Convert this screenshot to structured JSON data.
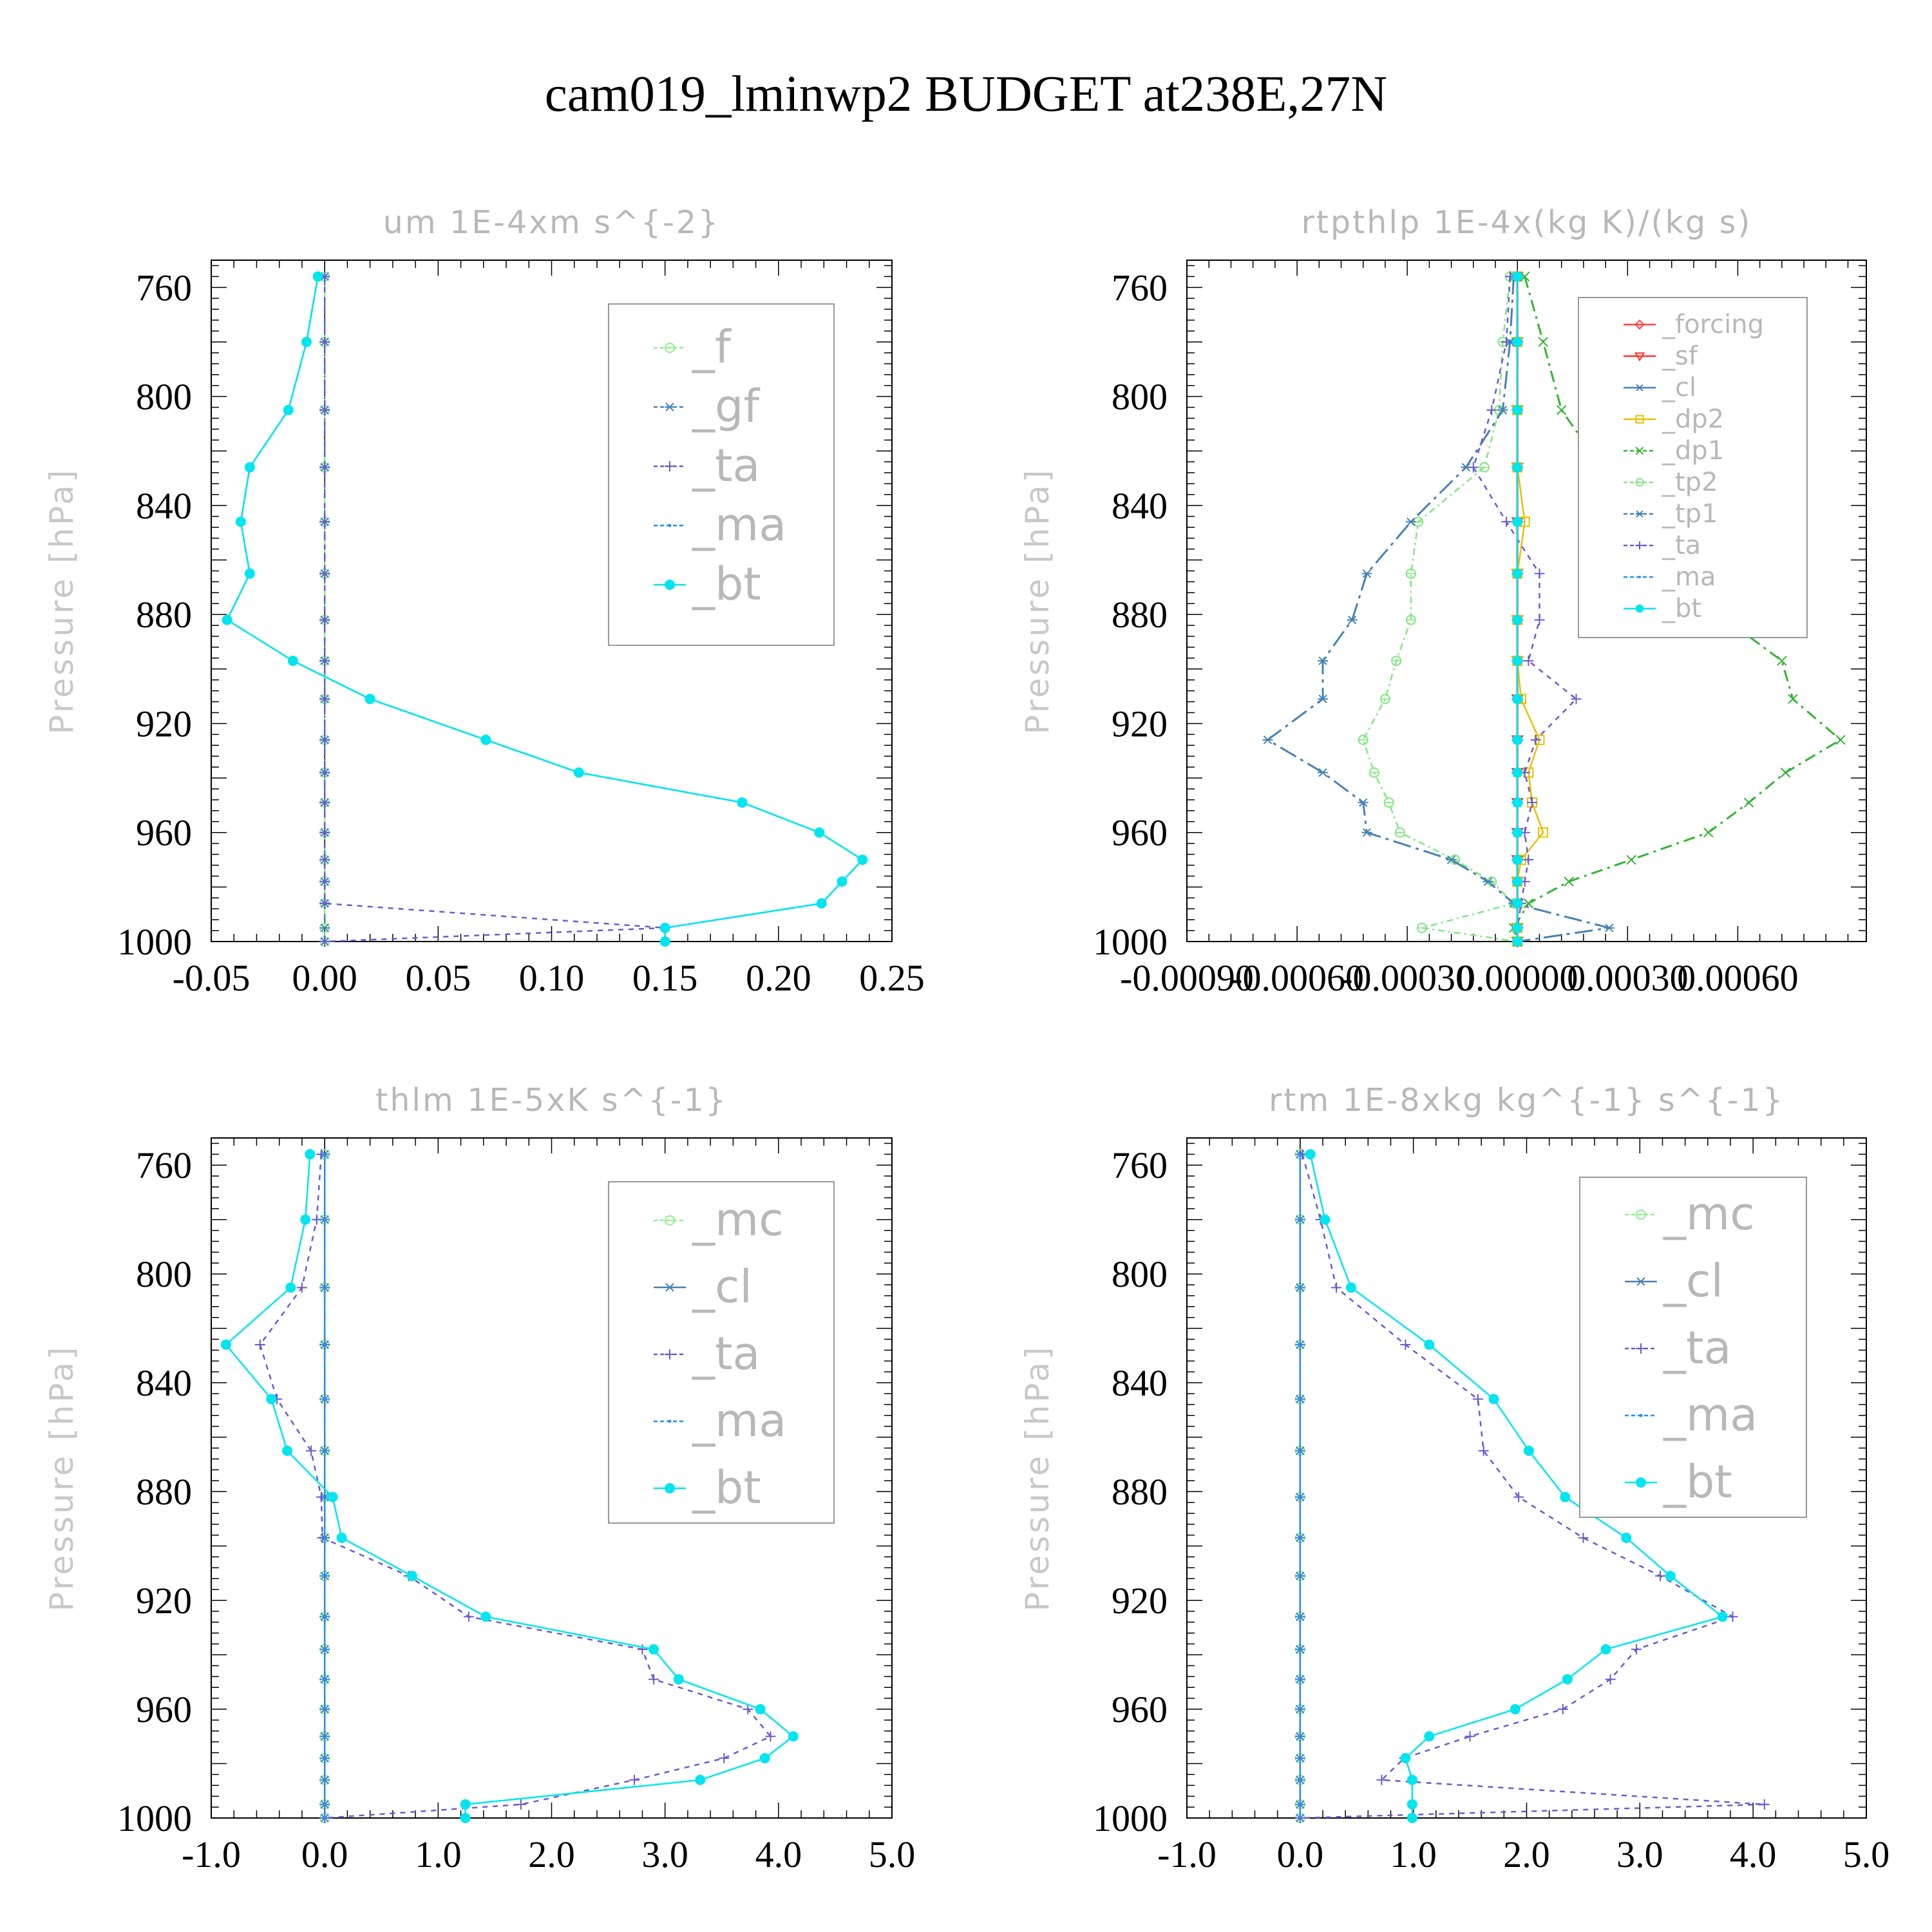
{
  "title": "cam019_lminwp2  BUDGET at238E,27N",
  "colors": {
    "f": "#90ee90",
    "gf": "#4682b4",
    "ta": "#6a5acd",
    "ma": "#1e90ff",
    "bt": "#00e5ee",
    "forcing": "#ff4040",
    "sf": "#ff3030",
    "cl": "#4682b4",
    "dp2": "#e6c200",
    "dp1": "#32b432",
    "tp2": "#7ee87e",
    "tp1": "#4682b4",
    "mc": "#90ee90"
  },
  "chart_data": [
    {
      "type": "line",
      "title": "um  1E-4xm s^{-2}",
      "xlabel": "",
      "ylabel": "Pressure [hPa]",
      "xlim": [
        -0.05,
        0.25
      ],
      "ylim": [
        1000,
        750
      ],
      "xticks": [
        "-0.05",
        "0.00",
        "0.05",
        "0.10",
        "0.15",
        "0.20",
        "0.25"
      ],
      "xtick_values": [
        -0.05,
        0.0,
        0.05,
        0.1,
        0.15,
        0.2,
        0.25
      ],
      "yticks": [
        "760",
        "800",
        "840",
        "880",
        "920",
        "960",
        "1000"
      ],
      "legend": {
        "placement": "top-right",
        "entries": [
          "_f",
          "_gf",
          "_ta",
          "_ma",
          "_bt"
        ]
      },
      "pressure": [
        756,
        780,
        805,
        826,
        846,
        865,
        882,
        897,
        911,
        926,
        938,
        949,
        960,
        970,
        978,
        986,
        995,
        1000
      ],
      "series": [
        {
          "name": "_f",
          "style": "f",
          "values": [
            0,
            0,
            0,
            0,
            0,
            0,
            0,
            0,
            0,
            0,
            0,
            0,
            0,
            0,
            0,
            0,
            0,
            0
          ]
        },
        {
          "name": "_gf",
          "style": "gf",
          "values": [
            0,
            0,
            0,
            0,
            0,
            0,
            0,
            0,
            0,
            0,
            0,
            0,
            0,
            0,
            0,
            0,
            0,
            0
          ]
        },
        {
          "name": "_ta",
          "style": "ta",
          "values": [
            0,
            0,
            0,
            0,
            0,
            0,
            0,
            0,
            0,
            0,
            0,
            0,
            0,
            0,
            0,
            0,
            0.15,
            0
          ]
        },
        {
          "name": "_ma",
          "style": "ma",
          "values": [
            -0.003,
            -0.008,
            -0.016,
            -0.033,
            -0.037,
            -0.033,
            -0.043,
            -0.014,
            0.02,
            0.071,
            0.112,
            0.184,
            0.218,
            0.237,
            0.228,
            0.219,
            0.15,
            0.15
          ]
        },
        {
          "name": "_bt",
          "style": "bt",
          "values": [
            -0.003,
            -0.008,
            -0.016,
            -0.033,
            -0.037,
            -0.033,
            -0.043,
            -0.014,
            0.02,
            0.071,
            0.112,
            0.184,
            0.218,
            0.237,
            0.228,
            0.219,
            0.15,
            0.15
          ]
        }
      ]
    },
    {
      "type": "line",
      "title": "rtpthlp  1E-4x(kg K)/(kg s)",
      "xlabel": "",
      "ylabel": "Pressure [hPa]",
      "xlim": [
        -0.0009,
        0.00095
      ],
      "ylim": [
        1000,
        750
      ],
      "xticks": [
        "-0.00090",
        "-0.00060",
        "-0.00030",
        "0.00000",
        "0.00030",
        "0.00060"
      ],
      "xtick_values": [
        -0.0009,
        -0.0006,
        -0.0003,
        0.0,
        0.0003,
        0.0006
      ],
      "yticks": [
        "760",
        "800",
        "840",
        "880",
        "920",
        "960",
        "1000"
      ],
      "legend": {
        "placement": "top-right",
        "entries": [
          "_forcing",
          "_sf",
          "_cl",
          "_dp2",
          "_dp1",
          "_tp2",
          "_tp1",
          "_ta",
          "_ma",
          "_bt"
        ]
      },
      "pressure": [
        756,
        780,
        805,
        826,
        846,
        865,
        882,
        897,
        911,
        926,
        938,
        949,
        960,
        970,
        978,
        986,
        995,
        1000
      ],
      "series": [
        {
          "name": "_forcing",
          "style": "forcing",
          "values": [
            0,
            0,
            0,
            0,
            0,
            0,
            0,
            0,
            0,
            0,
            0,
            0,
            0,
            0,
            0,
            0,
            0,
            0
          ]
        },
        {
          "name": "_sf",
          "style": "sf",
          "values": [
            0,
            0,
            0,
            0,
            0,
            0,
            0,
            0,
            0,
            0,
            0,
            0,
            0,
            0,
            0,
            0,
            0,
            0
          ]
        },
        {
          "name": "_cl",
          "style": "cl",
          "values": [
            0,
            0,
            0,
            0,
            0,
            0,
            0,
            0,
            0,
            0,
            0,
            0,
            0,
            0,
            0,
            0,
            0,
            0
          ]
        },
        {
          "name": "_dp2",
          "style": "dp2",
          "values": [
            0,
            0,
            0,
            0,
            2e-05,
            0,
            0,
            0,
            1e-05,
            6e-05,
            3e-05,
            4e-05,
            7e-05,
            1e-05,
            0,
            0,
            0,
            0
          ]
        },
        {
          "name": "_dp1",
          "style": "dp1",
          "values": [
            2e-05,
            7e-05,
            0.00012,
            0.00023,
            0.00042,
            0.00047,
            0.00057,
            0.00072,
            0.00075,
            0.00088,
            0.00073,
            0.00063,
            0.00052,
            0.00031,
            0.00014,
            3e-05,
            -1e-05,
            0
          ]
        },
        {
          "name": "_tp2",
          "style": "tp2",
          "values": [
            -2e-05,
            -4e-05,
            -5e-05,
            -9e-05,
            -0.00027,
            -0.00029,
            -0.00029,
            -0.00033,
            -0.00036,
            -0.00042,
            -0.00039,
            -0.00035,
            -0.00032,
            -0.00017,
            -7e-05,
            -1e-05,
            -0.00026,
            0
          ]
        },
        {
          "name": "_tp1",
          "style": "tp1",
          "values": [
            -1e-05,
            -2e-05,
            -4e-05,
            -0.00014,
            -0.00029,
            -0.00041,
            -0.00045,
            -0.00053,
            -0.00053,
            -0.00068,
            -0.00053,
            -0.00042,
            -0.00041,
            -0.00018,
            -8e-05,
            -1e-05,
            0.00025,
            0
          ]
        },
        {
          "name": "_ta",
          "style": "ta",
          "values": [
            -2e-05,
            -3e-05,
            -7e-05,
            -0.00012,
            -3e-05,
            6e-05,
            6e-05,
            3e-05,
            0.00016,
            5e-05,
            2e-05,
            4e-05,
            2e-05,
            3e-05,
            2e-05,
            1e-05,
            0,
            0
          ]
        },
        {
          "name": "_ma",
          "style": "ma",
          "values": [
            0,
            0,
            0,
            0,
            0,
            0,
            0,
            0,
            0,
            0,
            0,
            0,
            0,
            0,
            0,
            0,
            0,
            0
          ]
        },
        {
          "name": "_bt",
          "style": "bt",
          "values": [
            0,
            0,
            0,
            0,
            0,
            0,
            0,
            0,
            0,
            0,
            0,
            0,
            0,
            0,
            0,
            0,
            0,
            0
          ]
        }
      ]
    },
    {
      "type": "line",
      "title": "thlm  1E-5xK s^{-1}",
      "xlabel": "",
      "ylabel": "Pressure [hPa]",
      "xlim": [
        -1.0,
        5.0
      ],
      "ylim": [
        1000,
        750
      ],
      "xticks": [
        "-1.0",
        "0.0",
        "1.0",
        "2.0",
        "3.0",
        "4.0",
        "5.0"
      ],
      "xtick_values": [
        -1.0,
        0.0,
        1.0,
        2.0,
        3.0,
        4.0,
        5.0
      ],
      "yticks": [
        "760",
        "800",
        "840",
        "880",
        "920",
        "960",
        "1000"
      ],
      "legend": {
        "placement": "top-right",
        "entries": [
          "_mc",
          "_cl",
          "_ta",
          "_ma",
          "_bt"
        ]
      },
      "pressure": [
        756,
        780,
        805,
        826,
        846,
        865,
        882,
        897,
        911,
        926,
        938,
        949,
        960,
        970,
        978,
        986,
        995,
        1000
      ],
      "series": [
        {
          "name": "_mc",
          "style": "mc",
          "values": [
            0,
            0,
            0,
            0,
            0,
            0,
            0,
            0,
            0,
            0,
            0,
            0,
            0,
            0,
            0,
            0,
            0,
            0
          ]
        },
        {
          "name": "_cl",
          "style": "cl",
          "values": [
            0,
            0,
            0,
            0,
            0,
            0,
            0,
            0,
            0,
            0,
            0,
            0,
            0,
            0,
            0,
            0,
            0,
            0
          ]
        },
        {
          "name": "_ta",
          "style": "ta",
          "values": [
            -0.03,
            -0.07,
            -0.2,
            -0.57,
            -0.42,
            -0.12,
            -0.03,
            -0.02,
            0.74,
            1.27,
            2.8,
            2.9,
            3.73,
            3.93,
            3.52,
            2.73,
            1.73,
            0
          ]
        },
        {
          "name": "_ma",
          "style": "ma",
          "values": [
            0,
            0,
            0,
            0,
            0,
            0,
            0,
            0,
            0,
            0,
            0,
            0,
            0,
            0,
            0,
            0,
            0,
            0
          ]
        },
        {
          "name": "_bt",
          "style": "bt",
          "values": [
            -0.13,
            -0.17,
            -0.3,
            -0.87,
            -0.47,
            -0.33,
            0.07,
            0.15,
            0.77,
            1.42,
            2.9,
            3.12,
            3.84,
            4.13,
            3.88,
            3.31,
            1.24,
            1.24
          ]
        }
      ]
    },
    {
      "type": "line",
      "title": "rtm  1E-8xkg kg^{-1} s^{-1}",
      "xlabel": "",
      "ylabel": "Pressure [hPa]",
      "xlim": [
        -1.0,
        5.0
      ],
      "ylim": [
        1000,
        750
      ],
      "xticks": [
        "-1.0",
        "0.0",
        "1.0",
        "2.0",
        "3.0",
        "4.0",
        "5.0"
      ],
      "xtick_values": [
        -1.0,
        0.0,
        1.0,
        2.0,
        3.0,
        4.0,
        5.0
      ],
      "yticks": [
        "760",
        "800",
        "840",
        "880",
        "920",
        "960",
        "1000"
      ],
      "legend": {
        "placement": "top-right",
        "entries": [
          "_mc",
          "_cl",
          "_ta",
          "_ma",
          "_bt"
        ]
      },
      "pressure": [
        756,
        780,
        805,
        826,
        846,
        865,
        882,
        897,
        911,
        926,
        938,
        949,
        960,
        970,
        978,
        986,
        995,
        1000
      ],
      "series": [
        {
          "name": "_mc",
          "style": "mc",
          "values": [
            0,
            0,
            0,
            0,
            0,
            0,
            0,
            0,
            0,
            0,
            0,
            0,
            0,
            0,
            0,
            0,
            0,
            0
          ]
        },
        {
          "name": "_cl",
          "style": "cl",
          "values": [
            0,
            0,
            0,
            0,
            0,
            0,
            0,
            0,
            0,
            0,
            0,
            0,
            0,
            0,
            0,
            0,
            0,
            0
          ]
        },
        {
          "name": "_ta",
          "style": "ta",
          "values": [
            0.02,
            0.18,
            0.32,
            0.93,
            1.57,
            1.62,
            1.93,
            2.5,
            3.18,
            3.82,
            2.97,
            2.74,
            2.32,
            1.5,
            0.92,
            0.72,
            4.1,
            0
          ]
        },
        {
          "name": "_ma",
          "style": "ma",
          "values": [
            0,
            0,
            0,
            0,
            0,
            0,
            0,
            0,
            0,
            0,
            0,
            0,
            0,
            0,
            0,
            0,
            0,
            0
          ]
        },
        {
          "name": "_bt",
          "style": "bt",
          "values": [
            0.09,
            0.22,
            0.45,
            1.14,
            1.71,
            2.02,
            2.34,
            2.88,
            3.27,
            3.73,
            2.7,
            2.36,
            1.9,
            1.14,
            0.93,
            0.99,
            0.99,
            0.99
          ]
        }
      ]
    }
  ]
}
